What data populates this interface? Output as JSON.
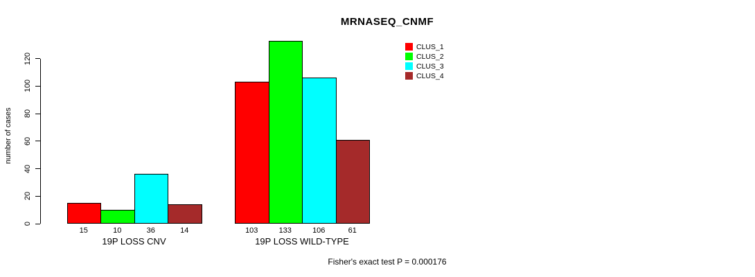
{
  "title": "MRNASEQ_CNMF",
  "footer": "Fisher's exact test P = 0.000176",
  "colors": {
    "clus_1": "#FF0000",
    "clus_2": "#00FF00",
    "clus_3": "#00FFFF",
    "clus_4": "#A52A2A",
    "axis": "#000000",
    "background": "#FFFFFF"
  },
  "chart_data": {
    "type": "bar",
    "title": "MRNASEQ_CNMF",
    "xlabel": "",
    "ylabel": "number of cases",
    "categories": [
      "19P LOSS CNV",
      "19P LOSS WILD-TYPE"
    ],
    "series": [
      {
        "name": "CLUS_1",
        "color": "#FF0000",
        "values": [
          15,
          103
        ]
      },
      {
        "name": "CLUS_2",
        "color": "#00FF00",
        "values": [
          10,
          133
        ]
      },
      {
        "name": "CLUS_3",
        "color": "#00FFFF",
        "values": [
          36,
          106
        ]
      },
      {
        "name": "CLUS_4",
        "color": "#A52A2A",
        "values": [
          14,
          61
        ]
      }
    ],
    "bar_value_labels": [
      [
        "15",
        "10",
        "36",
        "14"
      ],
      [
        "103",
        "133",
        "106",
        "61"
      ]
    ],
    "yticks": [
      0,
      20,
      40,
      60,
      80,
      100,
      120
    ],
    "ylim": [
      0,
      120
    ],
    "grid": false,
    "legend_position": "top-right",
    "annotation": "Fisher's exact test P = 0.000176"
  }
}
